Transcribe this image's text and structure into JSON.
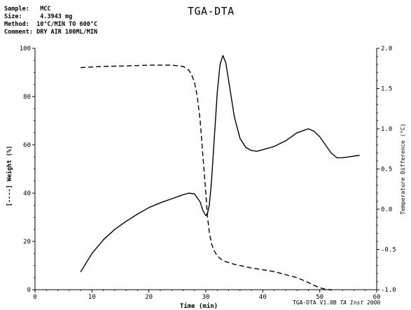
{
  "header": {
    "sample_label": "Sample:",
    "sample_value": "MCC",
    "size_label": "Size:",
    "size_value": "4.3943 mg",
    "method_label": "Method:",
    "method_value": "10°C/MIN TO 600°C",
    "comment_label": "Comment:",
    "comment_value": "DRY AIR 100ML/MIN"
  },
  "footer": {
    "prefix": "TGA-DTA V1.0B ",
    "italic": "TA Inst",
    "suffix": " 2000"
  },
  "chart_data": {
    "type": "line",
    "title": "TGA-DTA",
    "xlabel": "Time (min)",
    "ylabel_left": "[----] Weight (%)",
    "ylabel_right": "Temperature Difference (°C)",
    "xlim": [
      0,
      60
    ],
    "ylim_left": [
      0,
      100
    ],
    "ylim_right": [
      -1.0,
      2.0
    ],
    "xticks": [
      "0",
      "10",
      "20",
      "30",
      "40",
      "50",
      "60"
    ],
    "yticks_left": [
      "0",
      "20",
      "40",
      "60",
      "80",
      "100"
    ],
    "yticks_right": [
      "-1.0",
      "-0.5",
      "0.0",
      "0.5",
      "1.0",
      "1.5",
      "2.0"
    ],
    "grid": false,
    "series": [
      {
        "axis": "left",
        "style": "dashed",
        "x": [
          8,
          12,
          16,
          20,
          24,
          26,
          27,
          27.5,
          28,
          28.5,
          29,
          29.5,
          30,
          30.3,
          30.6,
          31,
          31.5,
          32,
          33,
          35,
          38,
          42,
          46,
          48,
          49,
          50,
          51,
          52
        ],
        "y": [
          92,
          92.5,
          92.7,
          93,
          93,
          92.5,
          91,
          89,
          86,
          80,
          70,
          55,
          40,
          30,
          24,
          19,
          16,
          14,
          12,
          10.5,
          9,
          7.5,
          5,
          3,
          1.8,
          0.8,
          0.2,
          0
        ]
      },
      {
        "axis": "right",
        "style": "solid",
        "x": [
          8,
          10,
          12,
          14,
          16,
          18,
          20,
          22,
          24,
          26,
          27,
          28,
          29,
          29.5,
          30,
          30.3,
          30.6,
          31,
          31.5,
          32,
          32.5,
          33,
          33.5,
          34,
          35,
          36,
          37,
          38,
          39,
          40,
          42,
          44,
          46,
          48,
          49,
          50,
          51,
          52,
          53,
          54,
          55,
          56,
          57
        ],
        "y": [
          -0.78,
          -0.55,
          -0.38,
          -0.25,
          -0.15,
          -0.06,
          0.02,
          0.08,
          0.13,
          0.18,
          0.2,
          0.19,
          0.09,
          -0.02,
          -0.08,
          -0.05,
          0.05,
          0.35,
          0.9,
          1.45,
          1.8,
          1.91,
          1.82,
          1.6,
          1.15,
          0.88,
          0.77,
          0.73,
          0.72,
          0.74,
          0.78,
          0.85,
          0.95,
          1.0,
          0.97,
          0.9,
          0.8,
          0.7,
          0.64,
          0.64,
          0.65,
          0.66,
          0.67
        ]
      }
    ]
  }
}
